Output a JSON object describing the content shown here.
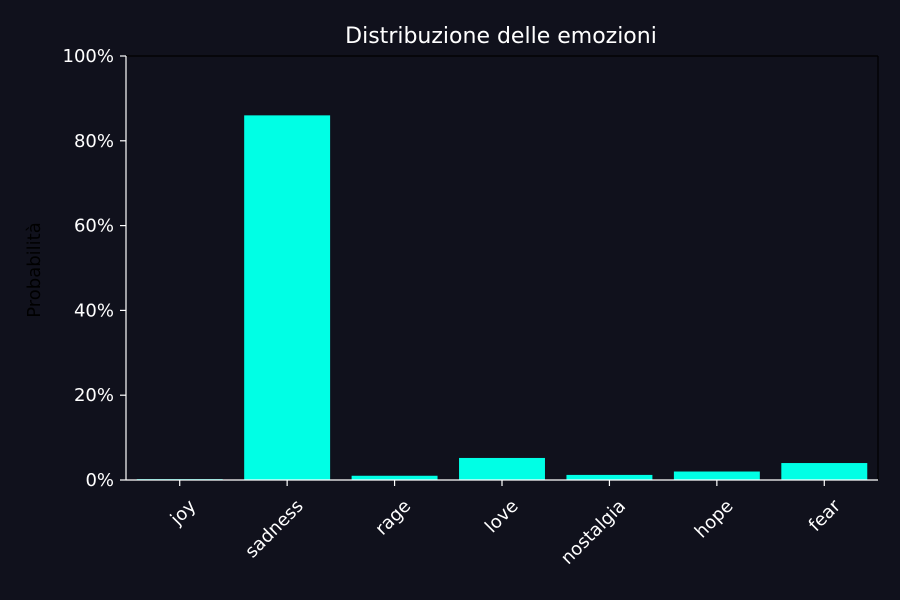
{
  "colors": {
    "background": "#10111c",
    "bar": "#00ffe5",
    "text": "#ffffff",
    "axis_label": "#000000",
    "axis": "#ffffff"
  },
  "chart_data": {
    "type": "bar",
    "title": "Distribuzione delle emozioni",
    "xlabel": "",
    "ylabel": "Probabilità",
    "categories": [
      "joy",
      "sadness",
      "rage",
      "love",
      "nostalgia",
      "hope",
      "fear"
    ],
    "values": [
      0.2,
      86,
      1,
      5.2,
      1.2,
      2,
      4
    ],
    "ylim": [
      0,
      100
    ],
    "yticks": [
      0,
      20,
      40,
      60,
      80,
      100
    ],
    "ytick_labels": [
      "0%",
      "20%",
      "40%",
      "60%",
      "80%",
      "100%"
    ],
    "grid": false,
    "legend": "none"
  }
}
